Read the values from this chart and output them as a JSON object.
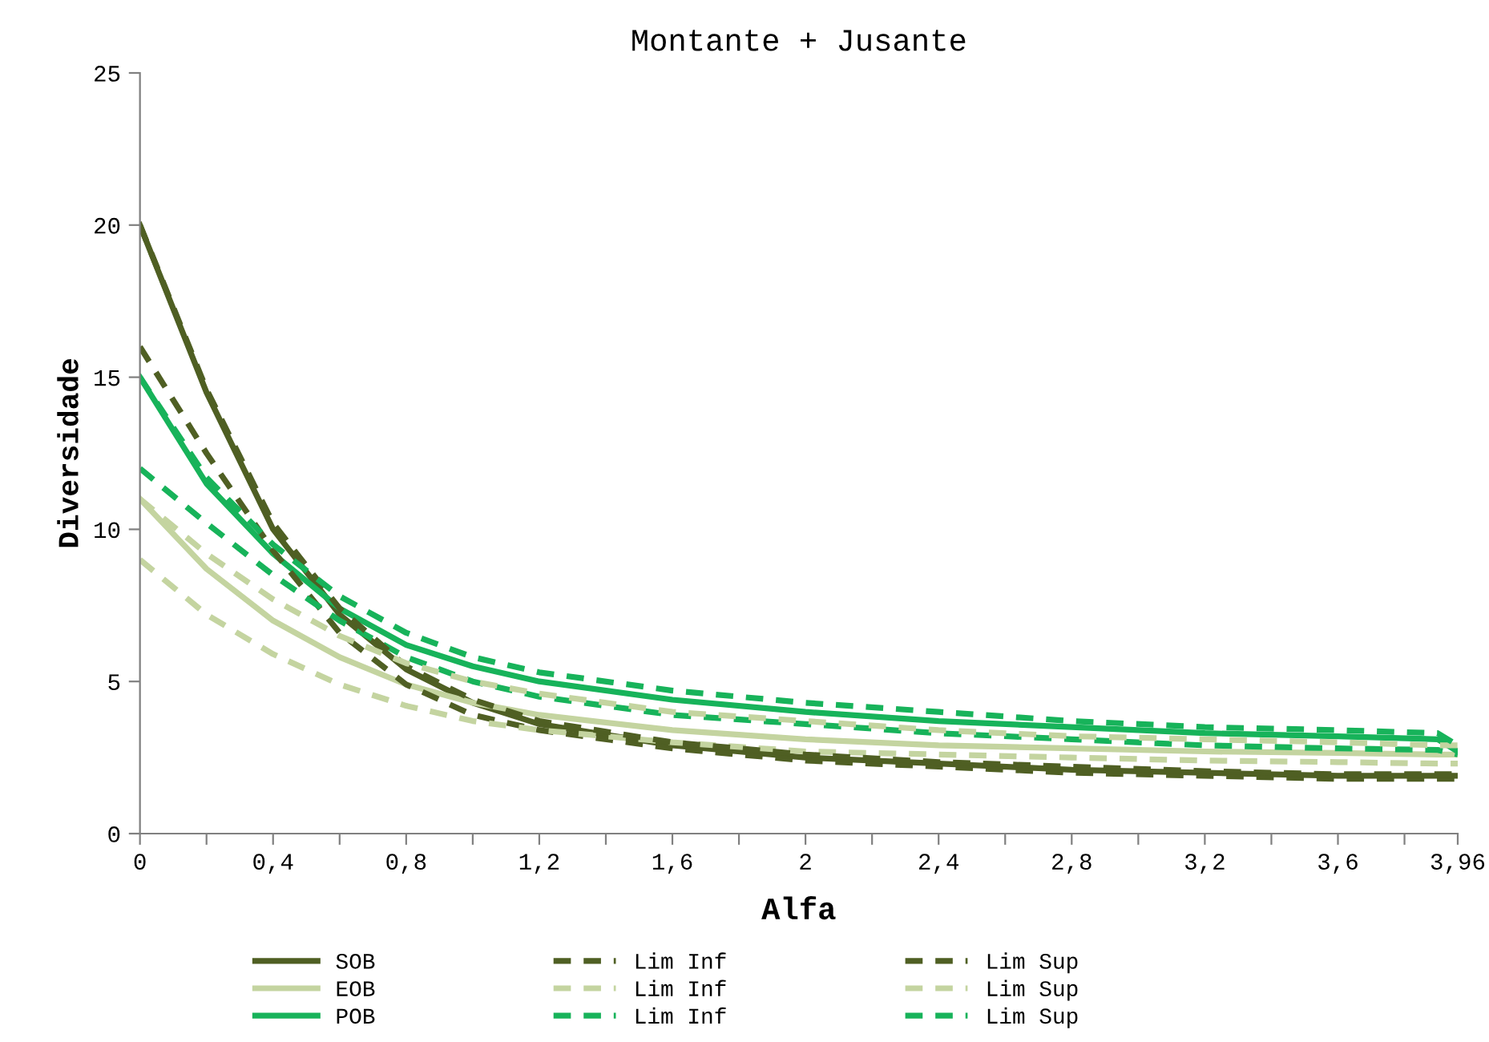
{
  "chart_data": {
    "type": "line",
    "title": "Montante + Jusante",
    "xlabel": "Alfa",
    "ylabel": "Diversidade",
    "x": [
      0,
      0.2,
      0.4,
      0.6,
      0.8,
      1.0,
      1.2,
      1.6,
      2.0,
      2.4,
      2.8,
      3.2,
      3.6,
      3.9,
      3.96
    ],
    "xlim": [
      0,
      3.96
    ],
    "ylim": [
      0,
      25
    ],
    "yticks": [
      0,
      5,
      10,
      15,
      20,
      25
    ],
    "xticks": [
      0,
      {
        "value": 0.2,
        "label": null
      },
      {
        "value": 0.4,
        "label": "0,4"
      },
      {
        "value": 0.6,
        "label": null
      },
      {
        "value": 0.8,
        "label": "0,8"
      },
      {
        "value": 1.0,
        "label": null
      },
      {
        "value": 1.2,
        "label": "1,2"
      },
      {
        "value": 1.4,
        "label": null
      },
      {
        "value": 1.6,
        "label": "1,6"
      },
      {
        "value": 1.8,
        "label": null
      },
      2,
      {
        "value": 2.2,
        "label": null
      },
      {
        "value": 2.4,
        "label": "2,4"
      },
      {
        "value": 2.6,
        "label": null
      },
      {
        "value": 2.8,
        "label": "2,8"
      },
      {
        "value": 3.0,
        "label": null
      },
      {
        "value": 3.2,
        "label": "3,2"
      },
      {
        "value": 3.4,
        "label": null
      },
      {
        "value": 3.6,
        "label": "3,6"
      },
      {
        "value": 3.8,
        "label": null
      },
      {
        "value": 3.96,
        "label": "3,96"
      }
    ],
    "grid": false,
    "legend": "bottom",
    "marker": "none",
    "series": [
      {
        "name": "SOB",
        "color": "#4f5f23",
        "line_style": "solid",
        "values": [
          20,
          14.5,
          10.0,
          7.2,
          5.4,
          4.3,
          3.6,
          2.9,
          2.5,
          2.3,
          2.1,
          2.0,
          1.9,
          1.9,
          1.9
        ]
      },
      {
        "name": "EOB",
        "color": "#c4d4a0",
        "line_style": "solid",
        "values": [
          11,
          8.7,
          7.0,
          5.8,
          4.9,
          4.3,
          3.9,
          3.4,
          3.1,
          2.9,
          2.8,
          2.7,
          2.65,
          2.6,
          2.6
        ]
      },
      {
        "name": "POB",
        "color": "#17b35a",
        "line_style": "solid",
        "values": [
          15,
          11.5,
          9.2,
          7.4,
          6.2,
          5.5,
          5.0,
          4.4,
          4.0,
          3.7,
          3.5,
          3.3,
          3.2,
          3.1,
          2.7
        ]
      },
      {
        "name": "Lim Inf",
        "color": "#4f5f23",
        "line_style": "dashed",
        "values": [
          16,
          12.5,
          9.3,
          6.6,
          4.9,
          3.9,
          3.4,
          2.8,
          2.4,
          2.2,
          2.0,
          1.9,
          1.8,
          1.8,
          1.8
        ]
      },
      {
        "name": "Lim Inf",
        "color": "#c4d4a0",
        "line_style": "dashed",
        "values": [
          9,
          7.2,
          5.9,
          4.9,
          4.2,
          3.7,
          3.4,
          3.0,
          2.7,
          2.6,
          2.5,
          2.4,
          2.35,
          2.3,
          2.3
        ]
      },
      {
        "name": "Lim Inf",
        "color": "#17b35a",
        "line_style": "dashed",
        "values": [
          12,
          10.2,
          8.5,
          7.0,
          5.8,
          5.0,
          4.5,
          3.9,
          3.6,
          3.3,
          3.1,
          2.9,
          2.8,
          2.75,
          2.6
        ]
      },
      {
        "name": "Lim Sup",
        "color": "#4f5f23",
        "line_style": "dashed",
        "values": [
          20,
          14.6,
          10.2,
          7.4,
          5.5,
          4.4,
          3.7,
          3.0,
          2.6,
          2.35,
          2.2,
          2.05,
          1.95,
          1.95,
          1.95
        ]
      },
      {
        "name": "Lim Sup",
        "color": "#c4d4a0",
        "line_style": "dashed",
        "values": [
          11,
          9.2,
          7.7,
          6.5,
          5.6,
          5.0,
          4.6,
          4.0,
          3.7,
          3.4,
          3.2,
          3.1,
          3.0,
          2.9,
          2.9
        ]
      },
      {
        "name": "Lim Sup",
        "color": "#17b35a",
        "line_style": "dashed",
        "values": [
          15,
          11.7,
          9.5,
          7.8,
          6.6,
          5.8,
          5.3,
          4.7,
          4.3,
          4.0,
          3.7,
          3.5,
          3.4,
          3.3,
          2.9
        ]
      }
    ]
  }
}
